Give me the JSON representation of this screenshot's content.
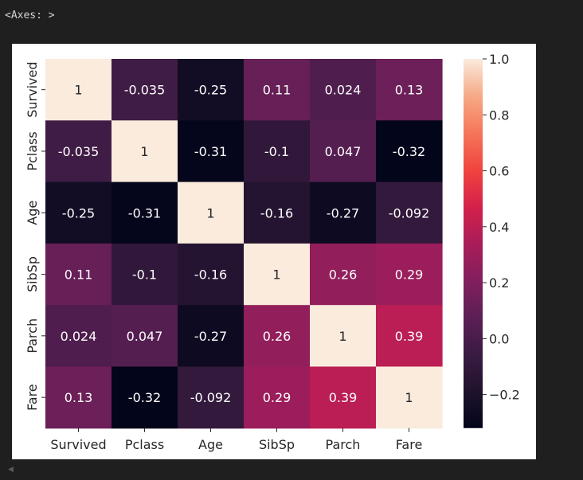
{
  "output": {
    "label": "<Axes: >"
  },
  "scrollbar": {
    "arrow": "◀"
  },
  "chart_data": {
    "type": "heatmap",
    "title": "",
    "xlabel": "",
    "ylabel": "",
    "categories": [
      "Survived",
      "Pclass",
      "Age",
      "SibSp",
      "Parch",
      "Fare"
    ],
    "values": [
      [
        1,
        -0.035,
        -0.25,
        0.11,
        0.024,
        0.13
      ],
      [
        -0.035,
        1,
        -0.31,
        -0.1,
        0.047,
        -0.32
      ],
      [
        -0.25,
        -0.31,
        1,
        -0.16,
        -0.27,
        -0.092
      ],
      [
        0.11,
        -0.1,
        -0.16,
        1,
        0.26,
        0.29
      ],
      [
        0.024,
        0.047,
        -0.27,
        0.26,
        1,
        0.39
      ],
      [
        0.13,
        -0.32,
        -0.092,
        0.29,
        0.39,
        1
      ]
    ],
    "value_labels": [
      [
        "1",
        "-0.035",
        "-0.25",
        "0.11",
        "0.024",
        "0.13"
      ],
      [
        "-0.035",
        "1",
        "-0.31",
        "-0.1",
        "0.047",
        "-0.32"
      ],
      [
        "-0.25",
        "-0.31",
        "1",
        "-0.16",
        "-0.27",
        "-0.092"
      ],
      [
        "0.11",
        "-0.1",
        "-0.16",
        "1",
        "0.26",
        "0.29"
      ],
      [
        "0.024",
        "0.047",
        "-0.27",
        "0.26",
        "1",
        "0.39"
      ],
      [
        "0.13",
        "-0.32",
        "-0.092",
        "0.29",
        "0.39",
        "1"
      ]
    ],
    "colormap": "rocket",
    "colorbar": {
      "range": [
        -0.32,
        1.0
      ],
      "ticks": [
        -0.2,
        0.0,
        0.2,
        0.4,
        0.6,
        0.8,
        1.0
      ],
      "tick_labels": [
        "−0.2",
        "0.0",
        "0.2",
        "0.4",
        "0.6",
        "0.8",
        "1.0"
      ]
    },
    "grid": false,
    "legend": "colorbar-right"
  }
}
